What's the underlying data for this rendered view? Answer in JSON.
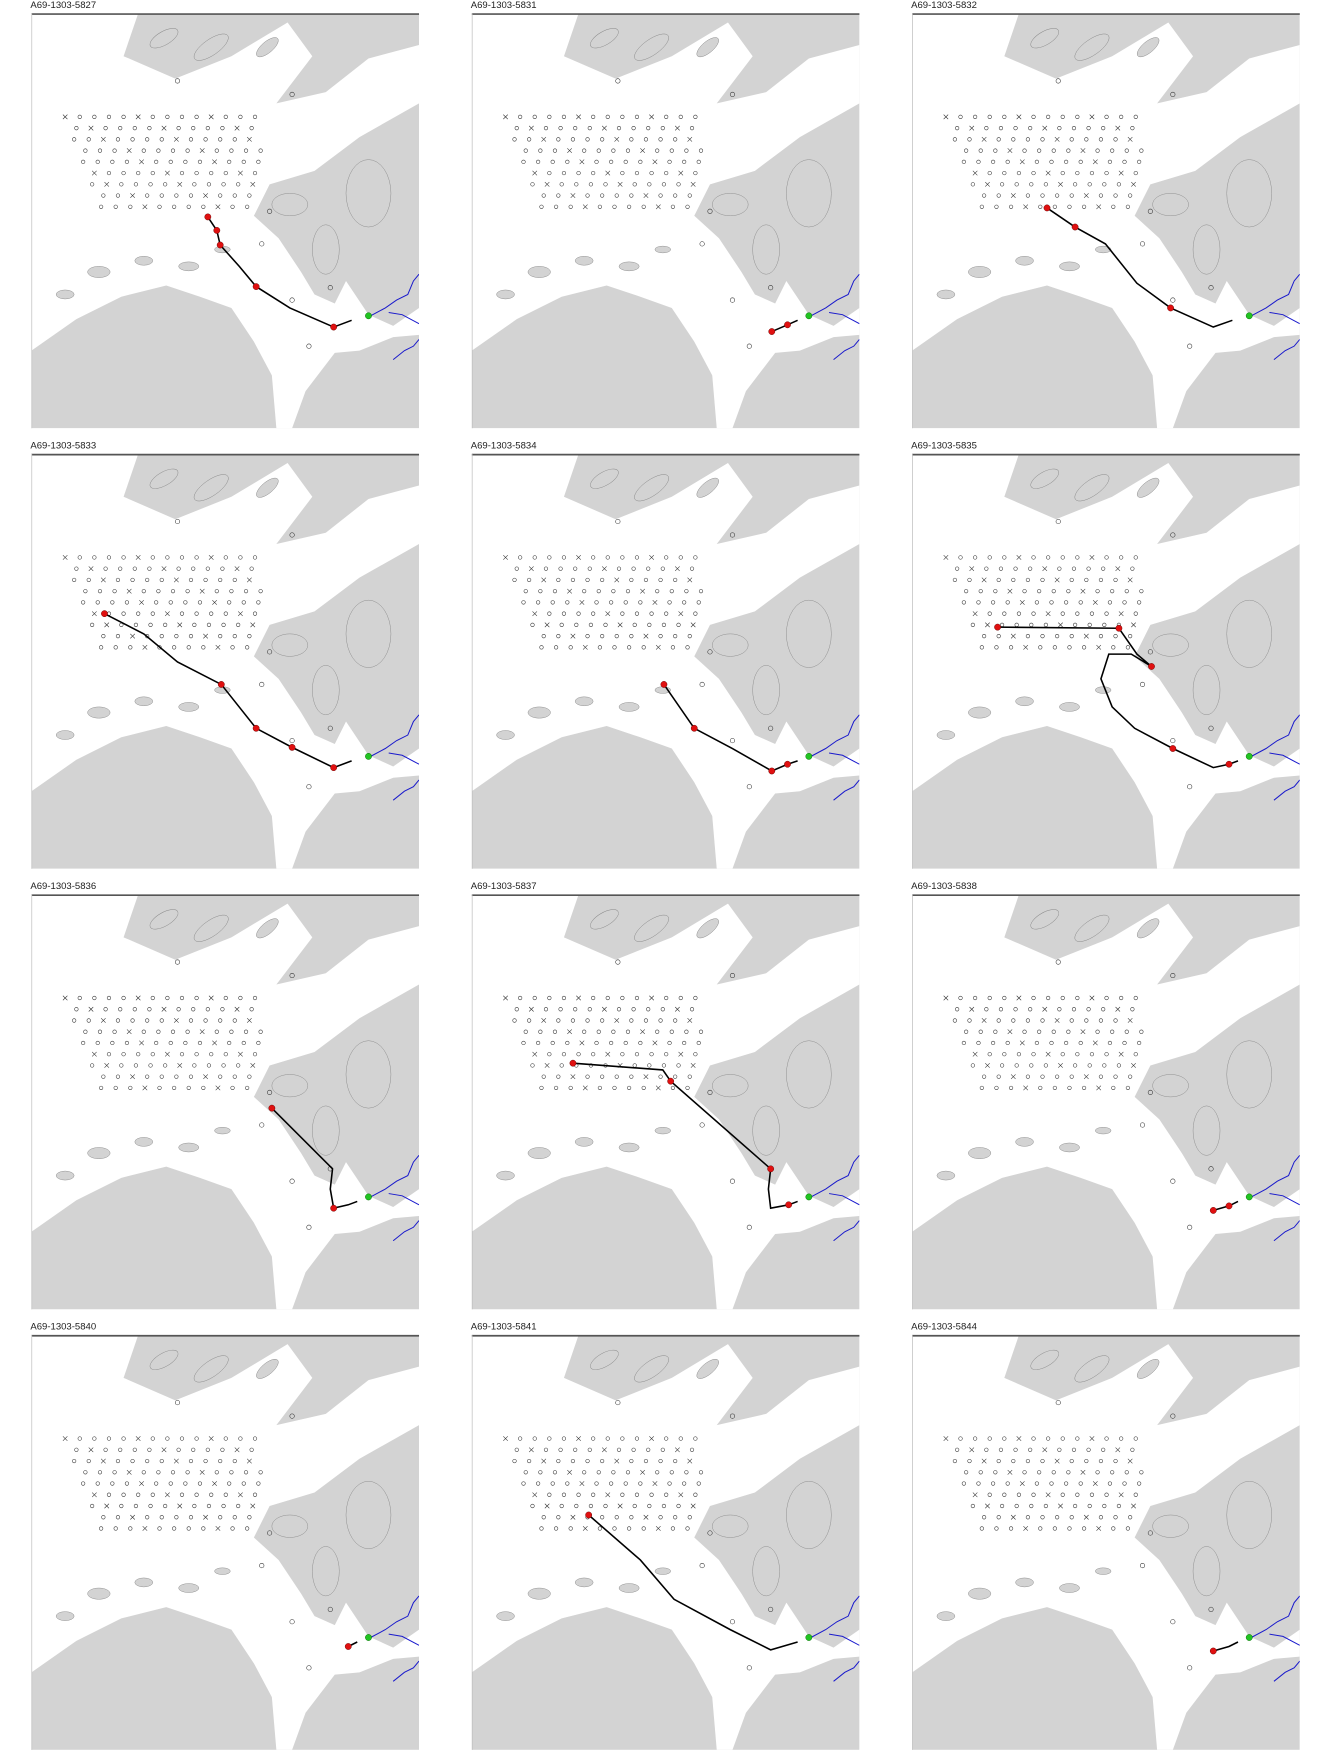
{
  "panels": [
    {
      "title": "A69-1303-5827"
    },
    {
      "title": "A69-1303-5831"
    },
    {
      "title": "A69-1303-5832"
    },
    {
      "title": "A69-1303-5833"
    },
    {
      "title": "A69-1303-5834"
    },
    {
      "title": "A69-1303-5835"
    },
    {
      "title": "A69-1303-5836"
    },
    {
      "title": "A69-1303-5837"
    },
    {
      "title": "A69-1303-5838"
    },
    {
      "title": "A69-1303-5840"
    },
    {
      "title": "A69-1303-5841"
    },
    {
      "title": "A69-1303-5844"
    }
  ]
}
